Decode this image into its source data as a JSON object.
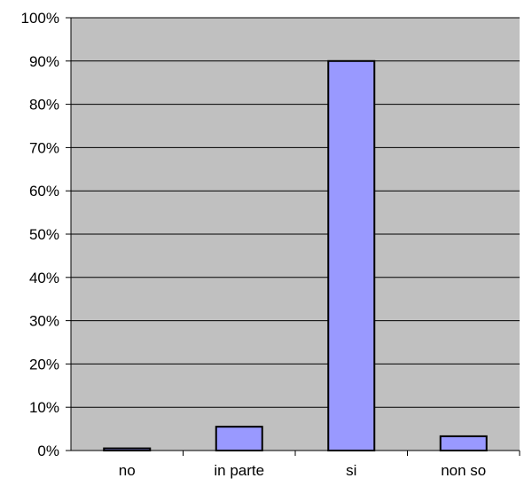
{
  "chart_data": {
    "type": "bar",
    "categories": [
      "no",
      "in parte",
      "si",
      "non so"
    ],
    "series": [
      {
        "values": [
          0.5,
          5.5,
          90,
          3.3
        ]
      }
    ],
    "ylim": [
      0,
      100
    ],
    "y_ticks": [
      "0%",
      "10%",
      "20%",
      "30%",
      "40%",
      "50%",
      "60%",
      "70%",
      "80%",
      "90%",
      "100%"
    ],
    "grid": true,
    "legend": "none",
    "colors": {
      "plot_background": "#c0c0c0",
      "bar_fill": "#9999ff",
      "bar_stroke": "#000000",
      "grid": "#000000"
    }
  }
}
